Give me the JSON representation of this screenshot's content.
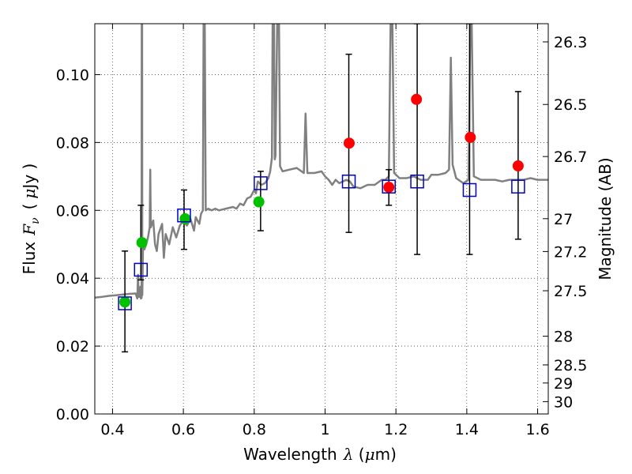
{
  "chart_data": {
    "type": "scatter",
    "xlabel": "Wavelength",
    "xlabel_symbol": "λ",
    "xlabel_unit_open": " (",
    "xlabel_unit_mu": "μ",
    "xlabel_unit_close": "m)",
    "ylabel": "Flux",
    "ylabel_symbol": "F",
    "ylabel_subscript": "ν",
    "ylabel_unit_open": "(",
    "ylabel_unit_mu": "μ",
    "ylabel_unit_close": "Jy )",
    "y2label": "Magnitude (AB)",
    "xlim": [
      0.35,
      1.63
    ],
    "ylim": [
      0.0,
      0.115
    ],
    "grid": true,
    "x_ticks": [
      0.4,
      0.6,
      0.8,
      1.0,
      1.2,
      1.4,
      1.6
    ],
    "x_tick_labels": [
      "0.4",
      "0.6",
      "0.8",
      "1",
      "1.2",
      "1.4",
      "1.6"
    ],
    "y_ticks": [
      0.0,
      0.02,
      0.04,
      0.06,
      0.08,
      0.1
    ],
    "y_tick_labels": [
      "0.00",
      "0.02",
      "0.04",
      "0.06",
      "0.08",
      "0.10"
    ],
    "mag_ticks": [
      26.3,
      26.5,
      26.7,
      27,
      27.2,
      27.5,
      28,
      28.5,
      29,
      30
    ],
    "mag_tick_labels": [
      "26.3",
      "26.5",
      "26.7",
      "27",
      "27.2",
      "27.5",
      "28",
      "28.5",
      "29",
      "30"
    ],
    "spectrum_color": "#808080",
    "spectrum": [
      [
        0.35,
        0.0343
      ],
      [
        0.37,
        0.0345
      ],
      [
        0.39,
        0.0348
      ],
      [
        0.41,
        0.035
      ],
      [
        0.43,
        0.0352
      ],
      [
        0.45,
        0.0354
      ],
      [
        0.465,
        0.0355
      ],
      [
        0.47,
        0.034
      ],
      [
        0.472,
        0.041
      ],
      [
        0.474,
        0.0345
      ],
      [
        0.477,
        0.0345
      ],
      [
        0.479,
        0.0375
      ],
      [
        0.48,
        0.034
      ],
      [
        0.482,
        0.0342
      ],
      [
        0.4825,
        0.115
      ],
      [
        0.4835,
        0.115
      ],
      [
        0.484,
        0.035
      ],
      [
        0.486,
        0.049
      ],
      [
        0.49,
        0.0485
      ],
      [
        0.495,
        0.05
      ],
      [
        0.5,
        0.052
      ],
      [
        0.505,
        0.055
      ],
      [
        0.5065,
        0.072
      ],
      [
        0.508,
        0.055
      ],
      [
        0.515,
        0.057
      ],
      [
        0.52,
        0.05
      ],
      [
        0.525,
        0.048
      ],
      [
        0.53,
        0.053
      ],
      [
        0.54,
        0.056
      ],
      [
        0.545,
        0.046
      ],
      [
        0.55,
        0.053
      ],
      [
        0.56,
        0.05
      ],
      [
        0.57,
        0.055
      ],
      [
        0.58,
        0.052
      ],
      [
        0.59,
        0.0555
      ],
      [
        0.6,
        0.057
      ],
      [
        0.61,
        0.0555
      ],
      [
        0.62,
        0.0575
      ],
      [
        0.63,
        0.054
      ],
      [
        0.635,
        0.058
      ],
      [
        0.645,
        0.056
      ],
      [
        0.65,
        0.059
      ],
      [
        0.655,
        0.06
      ],
      [
        0.657,
        0.115
      ],
      [
        0.6605,
        0.115
      ],
      [
        0.663,
        0.06
      ],
      [
        0.67,
        0.0605
      ],
      [
        0.68,
        0.06
      ],
      [
        0.69,
        0.0605
      ],
      [
        0.7,
        0.06
      ],
      [
        0.72,
        0.0605
      ],
      [
        0.74,
        0.061
      ],
      [
        0.75,
        0.0605
      ],
      [
        0.76,
        0.062
      ],
      [
        0.77,
        0.0615
      ],
      [
        0.78,
        0.0635
      ],
      [
        0.79,
        0.064
      ],
      [
        0.8,
        0.066
      ],
      [
        0.805,
        0.065
      ],
      [
        0.81,
        0.0685
      ],
      [
        0.82,
        0.0675
      ],
      [
        0.83,
        0.068
      ],
      [
        0.84,
        0.0695
      ],
      [
        0.845,
        0.0715
      ],
      [
        0.85,
        0.0755
      ],
      [
        0.852,
        0.115
      ],
      [
        0.856,
        0.115
      ],
      [
        0.858,
        0.075
      ],
      [
        0.86,
        0.076
      ],
      [
        0.865,
        0.115
      ],
      [
        0.87,
        0.115
      ],
      [
        0.873,
        0.073
      ],
      [
        0.88,
        0.0715
      ],
      [
        0.9,
        0.072
      ],
      [
        0.92,
        0.0725
      ],
      [
        0.94,
        0.071
      ],
      [
        0.945,
        0.0885
      ],
      [
        0.95,
        0.071
      ],
      [
        0.97,
        0.071
      ],
      [
        0.99,
        0.0715
      ],
      [
        1.0,
        0.07
      ],
      [
        1.01,
        0.069
      ],
      [
        1.02,
        0.0675
      ],
      [
        1.03,
        0.069
      ],
      [
        1.04,
        0.068
      ],
      [
        1.06,
        0.069
      ],
      [
        1.07,
        0.0685
      ],
      [
        1.08,
        0.067
      ],
      [
        1.1,
        0.0665
      ],
      [
        1.12,
        0.0675
      ],
      [
        1.14,
        0.0675
      ],
      [
        1.16,
        0.069
      ],
      [
        1.17,
        0.069
      ],
      [
        1.18,
        0.07
      ],
      [
        1.185,
        0.115
      ],
      [
        1.19,
        0.115
      ],
      [
        1.195,
        0.071
      ],
      [
        1.21,
        0.0695
      ],
      [
        1.23,
        0.0695
      ],
      [
        1.25,
        0.07
      ],
      [
        1.27,
        0.069
      ],
      [
        1.29,
        0.069
      ],
      [
        1.3,
        0.0705
      ],
      [
        1.32,
        0.0705
      ],
      [
        1.34,
        0.071
      ],
      [
        1.35,
        0.072
      ],
      [
        1.355,
        0.105
      ],
      [
        1.36,
        0.0735
      ],
      [
        1.37,
        0.0695
      ],
      [
        1.39,
        0.068
      ],
      [
        1.405,
        0.069
      ],
      [
        1.41,
        0.115
      ],
      [
        1.414,
        0.115
      ],
      [
        1.42,
        0.07
      ],
      [
        1.44,
        0.069
      ],
      [
        1.46,
        0.069
      ],
      [
        1.48,
        0.069
      ],
      [
        1.5,
        0.0685
      ],
      [
        1.52,
        0.069
      ],
      [
        1.54,
        0.069
      ],
      [
        1.56,
        0.069
      ],
      [
        1.58,
        0.0695
      ],
      [
        1.6,
        0.069
      ],
      [
        1.63,
        0.069
      ]
    ],
    "series": [
      {
        "name": "green",
        "color": "#00c000",
        "marker": "circle",
        "points": [
          [
            0.435,
            0.033
          ],
          [
            0.483,
            0.0505
          ],
          [
            0.605,
            0.0575
          ],
          [
            0.813,
            0.0625
          ]
        ]
      },
      {
        "name": "red",
        "color": "#ff0000",
        "marker": "circle",
        "points": [
          [
            1.068,
            0.0798
          ],
          [
            1.18,
            0.0668
          ],
          [
            1.258,
            0.0927
          ],
          [
            1.41,
            0.0815
          ],
          [
            1.545,
            0.0731
          ]
        ]
      },
      {
        "name": "blue",
        "color": "#0000cc",
        "marker": "open-square",
        "points": [
          [
            0.435,
            0.0326
          ],
          [
            0.48,
            0.0425
          ],
          [
            0.602,
            0.0585
          ],
          [
            0.818,
            0.068
          ],
          [
            1.067,
            0.0685
          ],
          [
            1.18,
            0.067
          ],
          [
            1.26,
            0.0685
          ],
          [
            1.408,
            0.066
          ],
          [
            1.545,
            0.067
          ]
        ]
      }
    ],
    "errorbars": [
      {
        "x": 0.435,
        "low": 0.0183,
        "high": 0.048
      },
      {
        "x": 0.48,
        "low": 0.0395,
        "high": 0.0615
      },
      {
        "x": 0.602,
        "low": 0.0485,
        "high": 0.066
      },
      {
        "x": 0.818,
        "low": 0.054,
        "high": 0.0715
      },
      {
        "x": 1.067,
        "low": 0.0535,
        "high": 0.106
      },
      {
        "x": 1.18,
        "low": 0.0615,
        "high": 0.072
      },
      {
        "x": 1.26,
        "low": 0.047,
        "high": 0.115
      },
      {
        "x": 1.408,
        "low": 0.047,
        "high": 0.115
      },
      {
        "x": 1.545,
        "low": 0.0515,
        "high": 0.095
      }
    ]
  }
}
